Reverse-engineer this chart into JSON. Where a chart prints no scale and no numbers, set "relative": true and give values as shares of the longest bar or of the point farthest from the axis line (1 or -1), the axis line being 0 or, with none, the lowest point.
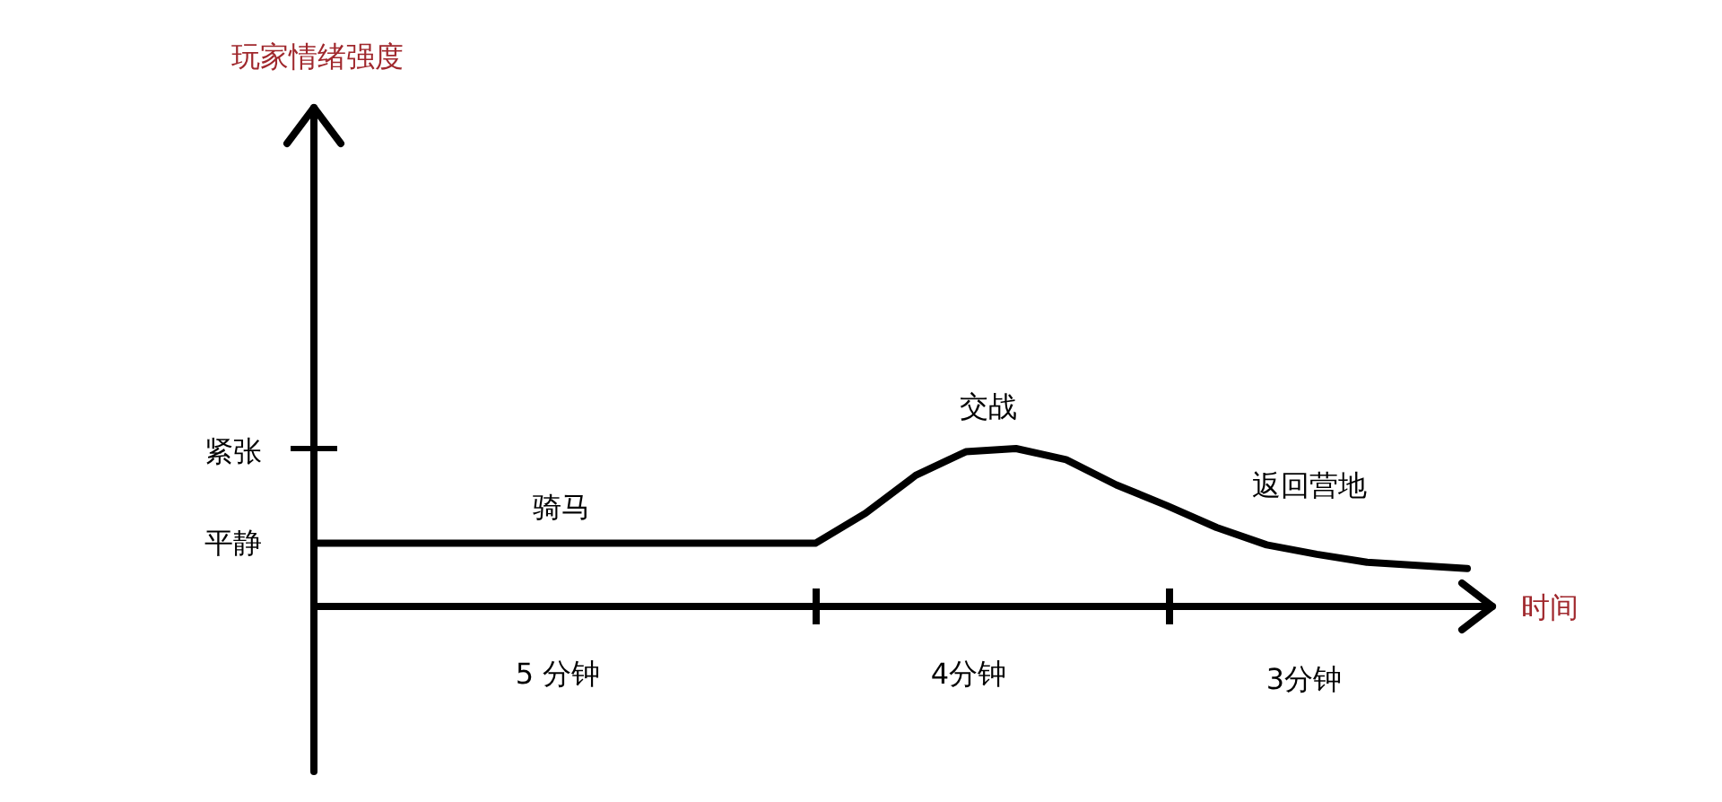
{
  "chart_data": {
    "type": "line",
    "relative": true,
    "xlabel": "时间",
    "categories": [
      null,
      null,
      null,
      null,
      null,
      null,
      null,
      null,
      null,
      null,
      null,
      null,
      null,
      null,
      null,
      null,
      null,
      null,
      null,
      null,
      null,
      null,
      null,
      null
    ],
    "series": [
      {
        "color": "#000000",
        "values": [
          0.4,
          0.4,
          0.4,
          0.4,
          0.4,
          0.4,
          0.4,
          0.4,
          0.4,
          0.4,
          0.4,
          0.59,
          0.83,
          0.98,
          1,
          0.93,
          0.77,
          0.64,
          0.5,
          0.39,
          0.33,
          0.28,
          0.26,
          0.24
        ]
      }
    ],
    "marker": "none",
    "line_style": "solid",
    "annotations": [
      "平静",
      "紧张",
      "骑马",
      "交战",
      "返回营地",
      "5 分钟",
      "4分钟",
      "3分钟",
      "玩家情绪强度"
    ]
  }
}
